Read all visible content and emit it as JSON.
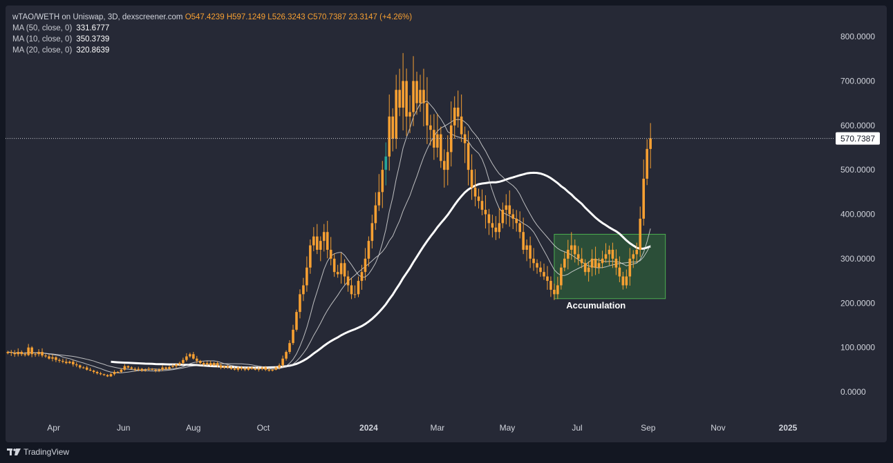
{
  "chart_data": {
    "type": "candlestick",
    "symbol": "wTAO/WETH on Uniswap, 3D, dexscreener.com",
    "ohlc_label": {
      "open": "O547.4239",
      "high": "H597.1249",
      "low": "L526.3243",
      "close": "C570.7387",
      "change": "23.3147 (+4.26%)"
    },
    "indicators": [
      {
        "label": "MA (50, close, 0)",
        "value": "331.6777",
        "color": "#ffffff",
        "width": 3
      },
      {
        "label": "MA (10, close, 0)",
        "value": "350.3739",
        "color": "#d9d9d9",
        "width": 1
      },
      {
        "label": "MA (20, close, 0)",
        "value": "320.8639",
        "color": "#d9d9d9",
        "width": 1
      }
    ],
    "y_ticks": [
      "800.0000",
      "700.0000",
      "600.0000",
      "500.0000",
      "400.0000",
      "300.0000",
      "200.0000",
      "100.0000",
      "0.0000"
    ],
    "ylim": [
      0,
      800
    ],
    "x_ticks": [
      {
        "label": "Apr",
        "date": "2023-04-01",
        "bold": false
      },
      {
        "label": "Jun",
        "date": "2023-06-01",
        "bold": false
      },
      {
        "label": "Aug",
        "date": "2023-08-01",
        "bold": false
      },
      {
        "label": "Oct",
        "date": "2023-10-01",
        "bold": false
      },
      {
        "label": "2024",
        "date": "2024-01-01",
        "bold": true
      },
      {
        "label": "Mar",
        "date": "2024-03-01",
        "bold": false
      },
      {
        "label": "May",
        "date": "2024-05-01",
        "bold": false
      },
      {
        "label": "Jul",
        "date": "2024-07-01",
        "bold": false
      },
      {
        "label": "Sep",
        "date": "2024-09-01",
        "bold": false
      },
      {
        "label": "Nov",
        "date": "2024-11-01",
        "bold": false
      },
      {
        "label": "2025",
        "date": "2025-01-01",
        "bold": true
      }
    ],
    "x_range": [
      "2023-02-18",
      "2025-02-08"
    ],
    "first_candle": "2023-02-20",
    "candle_period_days": 3,
    "last_price": "570.7387",
    "annotation": {
      "text": "Accumulation",
      "x_start": "2024-06-11",
      "x_end": "2024-09-16",
      "y_low": 210,
      "y_high": 355,
      "fill": "#2e5b3a",
      "stroke": "#4caf50"
    },
    "colors": {
      "candle": "#f7a032",
      "candle_alt": "#26a69a",
      "grid": "none",
      "background": "#262936",
      "text": "#d1d4dc"
    },
    "closes": [
      90,
      88,
      85,
      90,
      85,
      83,
      100,
      85,
      85,
      90,
      82,
      80,
      75,
      78,
      72,
      70,
      68,
      65,
      68,
      62,
      60,
      55,
      55,
      50,
      48,
      45,
      42,
      40,
      38,
      35,
      40,
      45,
      45,
      50,
      58,
      55,
      52,
      50,
      52,
      48,
      50,
      52,
      50,
      48,
      50,
      55,
      52,
      56,
      58,
      62,
      65,
      72,
      80,
      85,
      75,
      70,
      65,
      62,
      65,
      60,
      65,
      60,
      55,
      58,
      55,
      52,
      50,
      55,
      52,
      50,
      55,
      52,
      50,
      52,
      55,
      50,
      48,
      50,
      55,
      60,
      75,
      90,
      110,
      140,
      180,
      220,
      240,
      280,
      330,
      350,
      320,
      340,
      360,
      320,
      300,
      270,
      265,
      290,
      260,
      240,
      220,
      220,
      250,
      270,
      300,
      340,
      380,
      420,
      450,
      500,
      530,
      620,
      570,
      680,
      640,
      700,
      620,
      630,
      700,
      650,
      680,
      650,
      600,
      590,
      550,
      580,
      520,
      500,
      540,
      600,
      640,
      620,
      580,
      560,
      500,
      460,
      440,
      430,
      410,
      400,
      380,
      370,
      360,
      380,
      410,
      420,
      400,
      390,
      380,
      360,
      320,
      330,
      300,
      290,
      280,
      270,
      260,
      250,
      230,
      220,
      240,
      280,
      300,
      320,
      330,
      310,
      300,
      290,
      270,
      280,
      300,
      280,
      290,
      300,
      310,
      320,
      300,
      280,
      260,
      240,
      260,
      300,
      310,
      320,
      390,
      480,
      547,
      571
    ]
  }
}
